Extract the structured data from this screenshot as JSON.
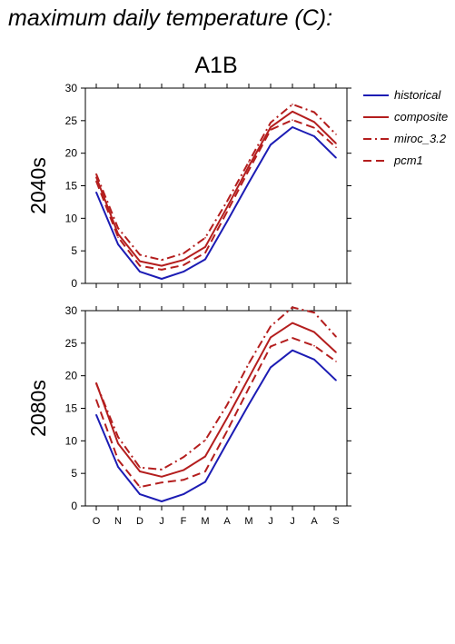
{
  "page": {
    "title": "maximum daily temperature (C):"
  },
  "colors": {
    "historical": "#1c1cb4",
    "future": "#b41e1e"
  },
  "chart_data": {
    "type": "line",
    "title": "A1B",
    "categories": [
      "O",
      "N",
      "D",
      "J",
      "F",
      "M",
      "A",
      "M",
      "J",
      "J",
      "A",
      "S"
    ],
    "ylim": [
      0,
      30
    ],
    "yticks": [
      0,
      5,
      10,
      15,
      20,
      25,
      30
    ],
    "grid": false,
    "legend": {
      "placement": "right",
      "entries": [
        {
          "label": "historical",
          "style": "solid",
          "color": "historical"
        },
        {
          "label": "composite",
          "style": "solid",
          "color": "future"
        },
        {
          "label": "miroc_3.2",
          "style": "dashdot",
          "color": "future"
        },
        {
          "label": "pcm1",
          "style": "dashed",
          "color": "future"
        }
      ]
    },
    "panels": [
      {
        "ylabel": "2040s",
        "series": [
          {
            "name": "historical",
            "style": "solid",
            "color": "historical",
            "values": [
              14.0,
              6.0,
              1.8,
              0.7,
              1.8,
              3.7,
              9.5,
              15.5,
              21.3,
              24.0,
              22.6,
              19.3
            ]
          },
          {
            "name": "composite",
            "style": "solid",
            "color": "future",
            "values": [
              16.3,
              7.6,
              3.4,
              2.7,
              3.6,
              5.6,
              11.7,
              18.0,
              24.0,
              26.4,
              24.8,
              21.5
            ]
          },
          {
            "name": "miroc_3.2",
            "style": "dashdot",
            "color": "future",
            "values": [
              16.8,
              8.5,
              4.4,
              3.6,
              4.6,
              7.0,
              12.6,
              18.7,
              24.7,
              27.5,
              26.3,
              22.9
            ]
          },
          {
            "name": "pcm1",
            "style": "dashed",
            "color": "future",
            "values": [
              15.7,
              7.1,
              2.7,
              2.1,
              2.8,
              4.7,
              11.0,
              17.4,
              23.6,
              25.1,
              23.9,
              20.9
            ]
          }
        ]
      },
      {
        "ylabel": "2080s",
        "series": [
          {
            "name": "historical",
            "style": "solid",
            "color": "historical",
            "values": [
              14.0,
              6.0,
              1.8,
              0.7,
              1.8,
              3.7,
              9.7,
              15.6,
              21.3,
              23.9,
              22.5,
              19.3
            ]
          },
          {
            "name": "composite",
            "style": "solid",
            "color": "future",
            "values": [
              18.9,
              9.6,
              5.3,
              4.5,
              5.5,
              7.6,
              13.5,
              19.7,
              25.9,
              28.1,
              26.7,
              23.6
            ]
          },
          {
            "name": "miroc_3.2",
            "style": "dashdot",
            "color": "future",
            "values": [
              18.8,
              10.6,
              5.9,
              5.6,
              7.5,
              10.1,
              15.5,
              21.9,
              27.6,
              30.5,
              29.7,
              26.0
            ]
          },
          {
            "name": "pcm1",
            "style": "dashed",
            "color": "future",
            "values": [
              16.3,
              7.1,
              2.9,
              3.6,
              4.0,
              5.3,
              11.5,
              18.1,
              24.5,
              25.8,
              24.6,
              22.2
            ]
          }
        ]
      }
    ]
  }
}
